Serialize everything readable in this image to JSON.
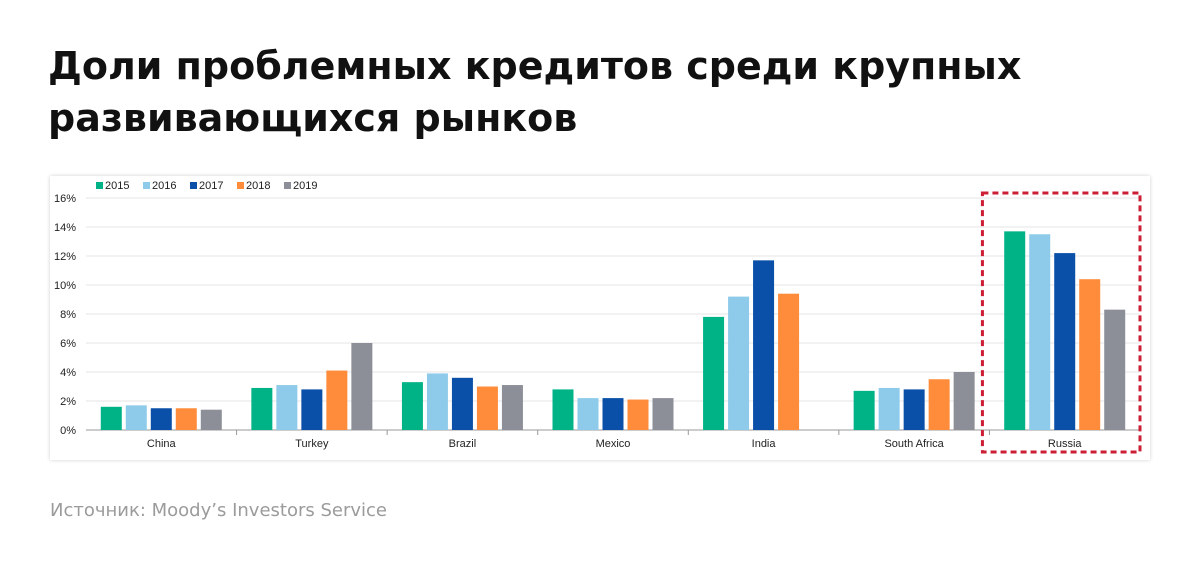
{
  "title": "Доли проблемных кредитов среди крупных развивающихся рынков",
  "source": "Источник: Moody’s Investors Service",
  "chart_data": {
    "type": "bar",
    "categories": [
      "China",
      "Turkey",
      "Brazil",
      "Mexico",
      "India",
      "South Africa",
      "Russia"
    ],
    "series": [
      {
        "name": "2015",
        "color": "#00b386",
        "values": [
          1.6,
          2.9,
          3.3,
          2.8,
          7.8,
          2.7,
          13.7
        ]
      },
      {
        "name": "2016",
        "color": "#8ecbea",
        "values": [
          1.7,
          3.1,
          3.9,
          2.2,
          9.2,
          2.9,
          13.5
        ]
      },
      {
        "name": "2017",
        "color": "#0a4fa8",
        "values": [
          1.5,
          2.8,
          3.6,
          2.2,
          11.7,
          2.8,
          12.2
        ]
      },
      {
        "name": "2018",
        "color": "#ff8c3b",
        "values": [
          1.5,
          4.1,
          3.0,
          2.1,
          9.4,
          3.5,
          10.4
        ]
      },
      {
        "name": "2019",
        "color": "#8c8f98",
        "values": [
          1.4,
          6.0,
          3.1,
          2.2,
          null,
          4.0,
          8.3
        ]
      }
    ],
    "ylim": [
      0,
      16
    ],
    "yticks": [
      "0%",
      "2%",
      "4%",
      "6%",
      "8%",
      "10%",
      "12%",
      "14%",
      "16%"
    ],
    "grid": true,
    "legend_position": "top-left",
    "highlight": {
      "category": "Russia",
      "color": "#cc1f36",
      "style": "dashed box"
    }
  }
}
